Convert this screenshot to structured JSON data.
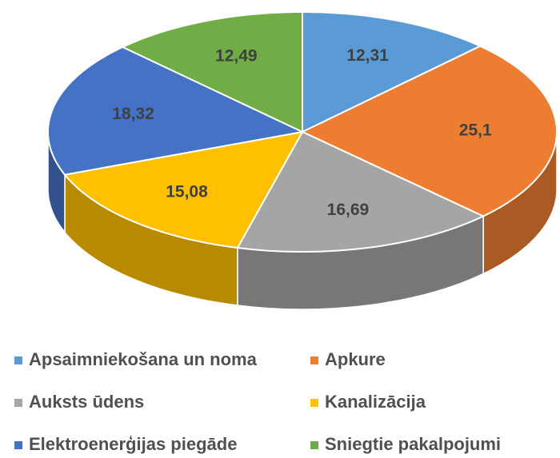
{
  "chart_data": {
    "type": "pie",
    "categories": [
      "Apsaimniekošana un noma",
      "Apkure",
      "Auksts ūdens",
      "Kanalizācija",
      "Elektroenerģijas piegāde",
      "Sniegtie pakalpojumi"
    ],
    "values": [
      12.31,
      25.1,
      16.69,
      15.08,
      18.32,
      12.49
    ],
    "value_labels": [
      "12,31",
      "25,1",
      "16,69",
      "15,08",
      "18,32",
      "12,49"
    ],
    "colors": [
      "#5b9bd5",
      "#ed7d31",
      "#a5a5a5",
      "#ffc000",
      "#4472c4",
      "#70ad47"
    ],
    "legend": "bottom"
  }
}
